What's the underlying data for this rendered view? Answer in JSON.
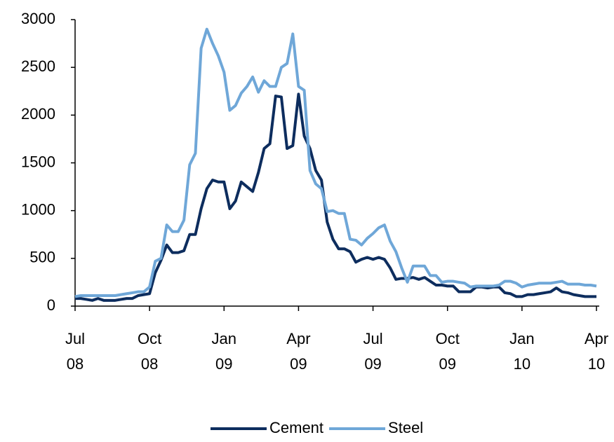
{
  "chart_data": {
    "type": "line",
    "categories": [
      "Jul 08",
      null,
      null,
      null,
      null,
      null,
      null,
      null,
      null,
      null,
      null,
      null,
      null,
      "Oct 08",
      null,
      null,
      null,
      null,
      null,
      null,
      null,
      null,
      null,
      null,
      null,
      null,
      "Jan 09",
      null,
      null,
      null,
      null,
      null,
      null,
      null,
      null,
      null,
      null,
      null,
      null,
      "Apr 09",
      null,
      null,
      null,
      null,
      null,
      null,
      null,
      null,
      null,
      null,
      null,
      null,
      "Jul 09",
      null,
      null,
      null,
      null,
      null,
      null,
      null,
      null,
      null,
      null,
      null,
      null,
      "Oct 09",
      null,
      null,
      null,
      null,
      null,
      null,
      null,
      null,
      null,
      null,
      null,
      null,
      "Jan 10",
      null,
      null,
      null,
      null,
      null,
      null,
      null,
      null,
      null,
      null,
      null,
      null,
      "Apr 10"
    ],
    "series": [
      {
        "name": "Cement",
        "color": "#0d2d5e",
        "values": [
          80,
          80,
          70,
          60,
          80,
          60,
          60,
          60,
          70,
          80,
          80,
          110,
          120,
          130,
          350,
          480,
          640,
          560,
          560,
          580,
          750,
          750,
          1020,
          1230,
          1320,
          1300,
          1300,
          1020,
          1100,
          1300,
          1250,
          1200,
          1400,
          1650,
          1700,
          2200,
          2190,
          1650,
          1680,
          2220,
          1780,
          1650,
          1420,
          1320,
          880,
          700,
          600,
          600,
          570,
          460,
          490,
          510,
          490,
          510,
          490,
          400,
          280,
          290,
          290,
          300,
          280,
          300,
          260,
          220,
          220,
          210,
          210,
          150,
          150,
          150,
          200,
          200,
          190,
          200,
          200,
          140,
          130,
          100,
          100,
          120,
          120,
          130,
          140,
          150,
          190,
          150,
          140,
          120,
          110,
          100,
          100,
          100
        ]
      },
      {
        "name": "Steel",
        "color": "#6fa7d8",
        "values": [
          100,
          110,
          110,
          110,
          110,
          110,
          110,
          110,
          120,
          130,
          140,
          150,
          150,
          200,
          470,
          500,
          850,
          780,
          780,
          900,
          1480,
          1600,
          2700,
          2900,
          2750,
          2620,
          2450,
          2050,
          2100,
          2230,
          2300,
          2400,
          2240,
          2360,
          2300,
          2300,
          2500,
          2540,
          2850,
          2300,
          2260,
          1420,
          1280,
          1230,
          990,
          1000,
          970,
          970,
          700,
          690,
          640,
          710,
          760,
          820,
          850,
          680,
          570,
          400,
          250,
          420,
          420,
          420,
          320,
          320,
          250,
          260,
          260,
          250,
          240,
          200,
          210,
          210,
          210,
          210,
          220,
          260,
          260,
          240,
          200,
          220,
          230,
          240,
          240,
          240,
          250,
          260,
          230,
          230,
          230,
          220,
          220,
          210
        ]
      }
    ],
    "ylim": [
      0,
      3000
    ],
    "yticks": [
      0,
      500,
      1000,
      1500,
      2000,
      2500,
      3000
    ],
    "legend": "bottom"
  }
}
